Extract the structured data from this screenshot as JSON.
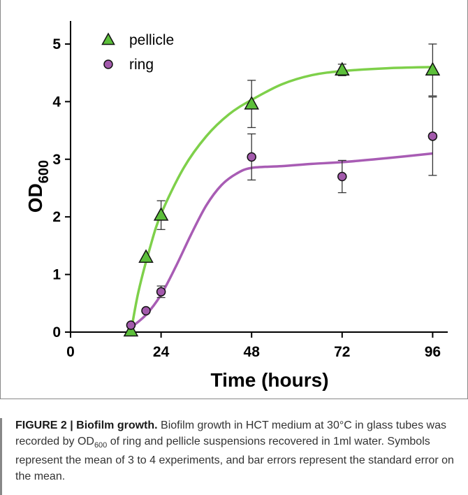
{
  "chart_data": {
    "type": "scatter",
    "xlabel": "Time (hours)",
    "ylabel_main": "OD",
    "ylabel_sub": "600",
    "xlim": [
      0,
      100
    ],
    "ylim": [
      0,
      5.4
    ],
    "xticks": [
      0,
      24,
      48,
      72,
      96
    ],
    "yticks": [
      0,
      1,
      2,
      3,
      4,
      5
    ],
    "legend_position": "top-left",
    "series": [
      {
        "name": "pellicle",
        "marker": "triangle",
        "color": "#5cbf3a",
        "line_color": "#7ed04a",
        "x": [
          16,
          20,
          24,
          48,
          72,
          96
        ],
        "y": [
          0.02,
          1.3,
          2.03,
          3.96,
          4.55,
          4.55
        ],
        "err": [
          0,
          0,
          0.25,
          0.41,
          0.1,
          0.45
        ],
        "fit": [
          [
            16,
            0
          ],
          [
            18,
            0.7
          ],
          [
            21,
            1.45
          ],
          [
            24,
            2.05
          ],
          [
            30,
            2.85
          ],
          [
            36,
            3.4
          ],
          [
            42,
            3.78
          ],
          [
            48,
            4.03
          ],
          [
            56,
            4.3
          ],
          [
            64,
            4.46
          ],
          [
            72,
            4.53
          ],
          [
            84,
            4.58
          ],
          [
            96,
            4.6
          ]
        ]
      },
      {
        "name": "ring",
        "marker": "circle",
        "color": "#a35aac",
        "line_color": "#a85cb4",
        "x": [
          16,
          20,
          24,
          48,
          72,
          96
        ],
        "y": [
          0.12,
          0.37,
          0.7,
          3.04,
          2.7,
          3.4
        ],
        "err": [
          0,
          0,
          0.1,
          0.4,
          0.28,
          0.68
        ],
        "fit": [
          [
            16,
            0.08
          ],
          [
            20,
            0.3
          ],
          [
            24,
            0.65
          ],
          [
            28,
            1.15
          ],
          [
            32,
            1.7
          ],
          [
            36,
            2.2
          ],
          [
            40,
            2.55
          ],
          [
            44,
            2.75
          ],
          [
            48,
            2.85
          ],
          [
            56,
            2.88
          ],
          [
            64,
            2.92
          ],
          [
            72,
            2.95
          ],
          [
            84,
            3.02
          ],
          [
            96,
            3.1
          ]
        ]
      }
    ]
  },
  "caption": {
    "label": "FIGURE 2 | Biofilm growth.",
    "text_before_sub": " Biofilm growth in HCT medium at 30°C in glass tubes was recorded by OD",
    "sub": "600",
    "text_after_sub": " of ring and pellicle suspensions recovered in 1ml water. Symbols represent the mean of 3 to 4 experiments, and bar errors represent the standard error on the mean."
  }
}
